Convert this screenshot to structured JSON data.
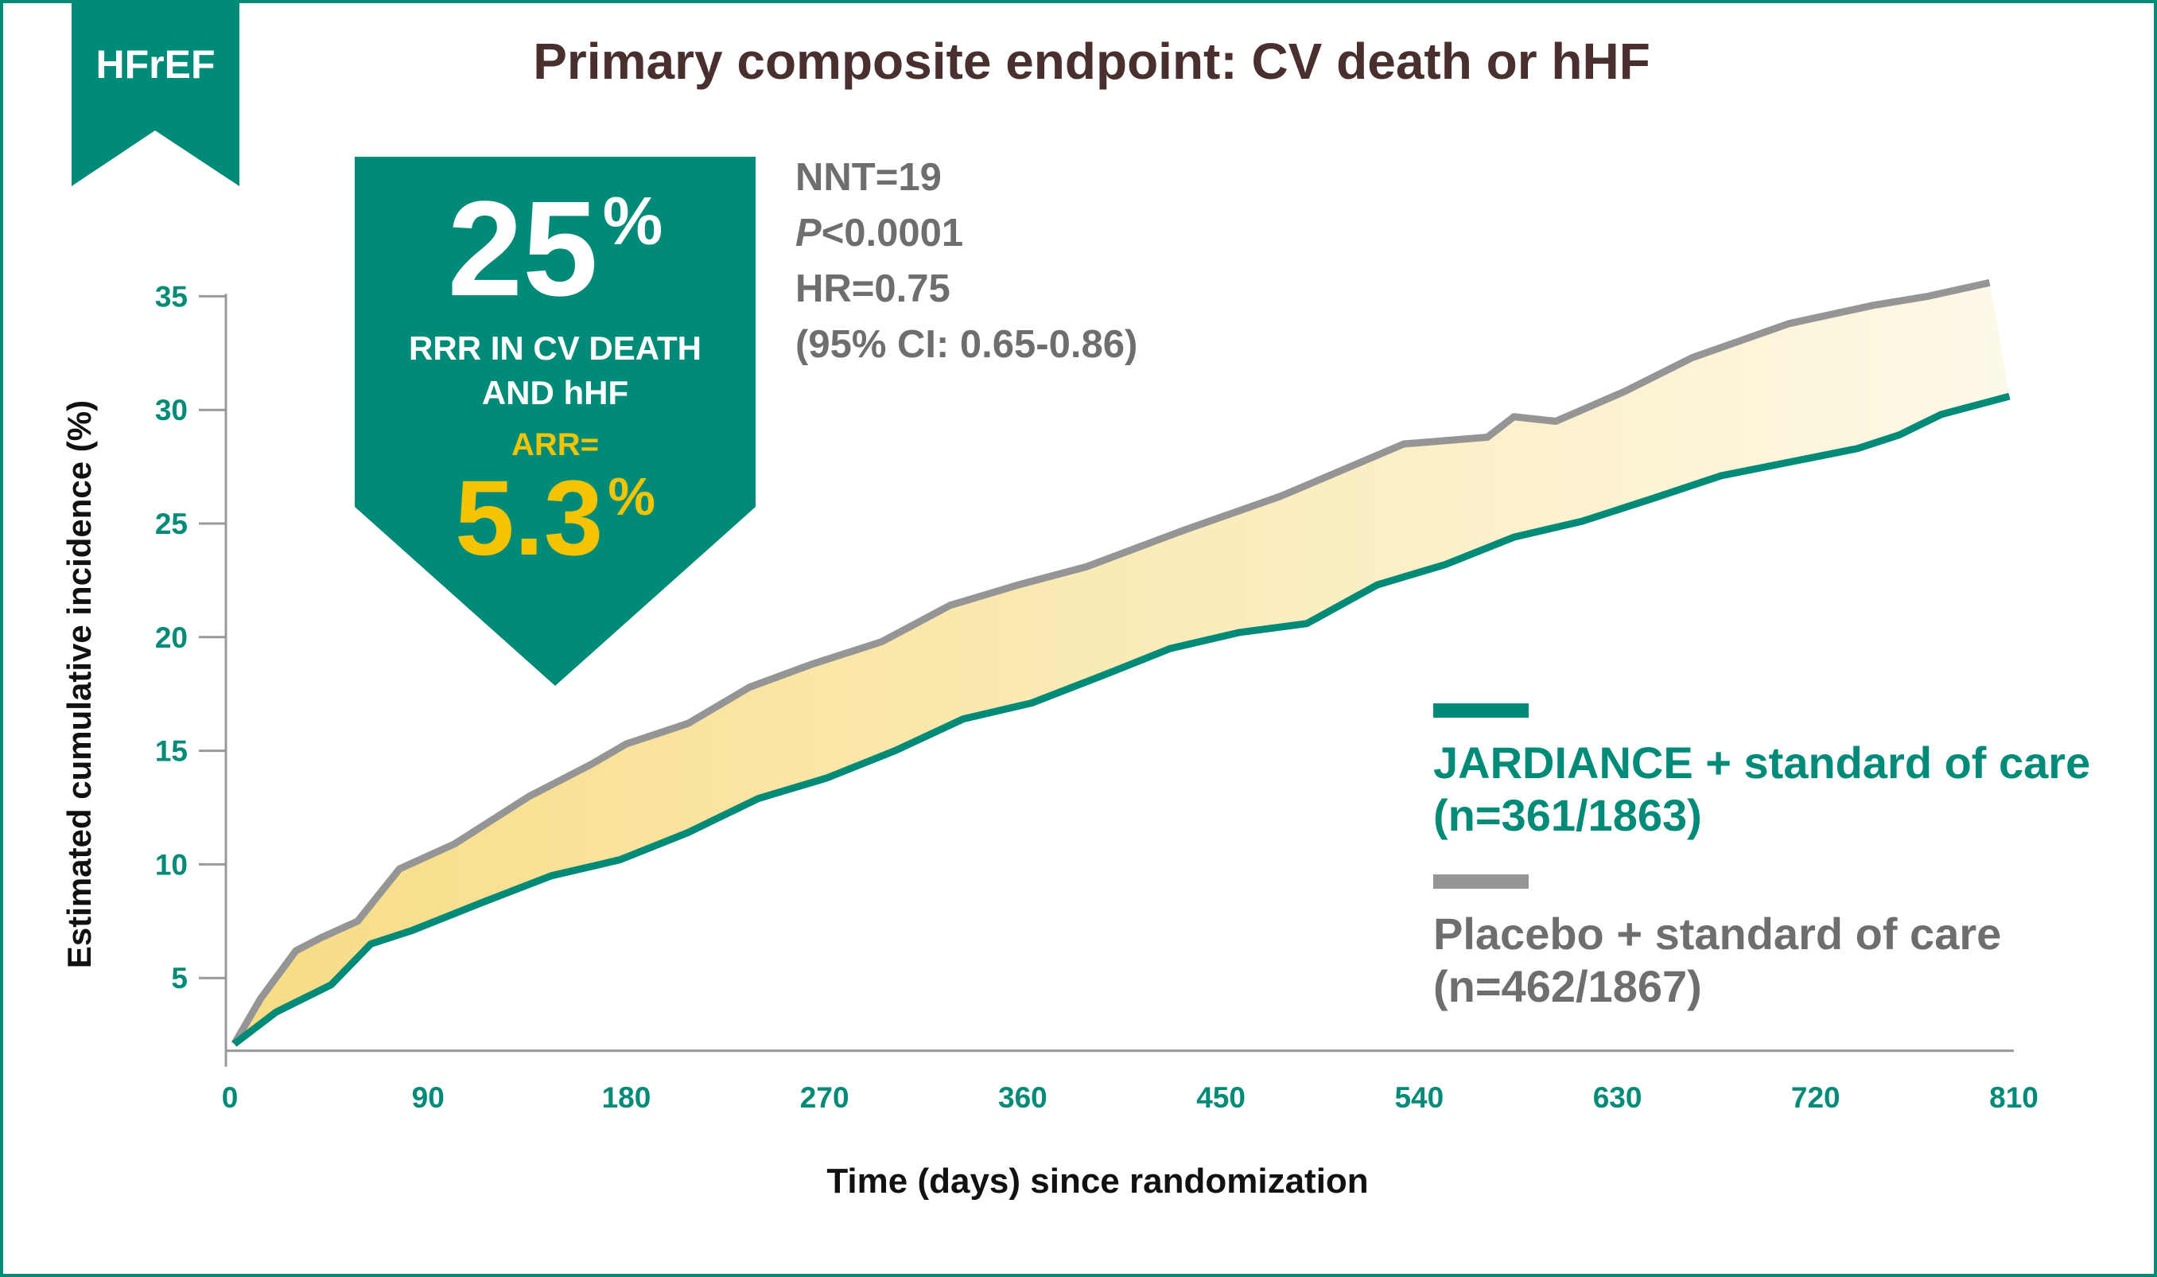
{
  "badge_tag": "HFrEF",
  "title": "Primary composite endpoint: CV death or hHF",
  "callout": {
    "rrr_value": "25",
    "rrr_unit": "%",
    "rrr_line1": "RRR IN CV DEATH",
    "rrr_line2": "AND hHF",
    "arr_label": "ARR=",
    "arr_value": "5.3",
    "arr_unit": "%"
  },
  "stats": {
    "nnt": "NNT=19",
    "p_italic": "P",
    "p_rest": "<0.0001",
    "hr": "HR=0.75",
    "ci": "(95% CI: 0.65-0.86)"
  },
  "colors": {
    "teal": "#008b78",
    "gray": "#959595",
    "yellow": "#f5c400",
    "fill_start": "#f8dc85",
    "fill_end": "#fdf9e8",
    "title": "#4a2f2f"
  },
  "chart_data": {
    "type": "line",
    "xlabel": "Time (days) since randomization",
    "ylabel": "Estimated cumulative incidence (%)",
    "xlim": [
      0,
      810
    ],
    "ylim": [
      1.8,
      35
    ],
    "xticks": [
      "0",
      "90",
      "180",
      "270",
      "360",
      "450",
      "540",
      "630",
      "720",
      "810"
    ],
    "yticks": [
      "5",
      "10",
      "15",
      "20",
      "25",
      "30",
      "35"
    ],
    "grid": false,
    "legend_placement": "right",
    "shaded_between_series": true,
    "series": [
      {
        "name": "JARDIANCE + standard of care",
        "n_label": "(n=361/1863)",
        "color": "#008b78",
        "x": [
          2,
          21,
          46,
          64,
          83,
          114,
          146,
          177,
          208,
          240,
          271,
          302,
          333,
          364,
          396,
          427,
          458,
          489,
          521,
          552,
          583,
          614,
          646,
          677,
          708,
          739,
          758,
          777,
          808
        ],
        "y": [
          2.1,
          3.5,
          4.7,
          6.5,
          7.1,
          8.3,
          9.5,
          10.2,
          11.4,
          12.9,
          13.8,
          15.0,
          16.4,
          17.1,
          18.3,
          19.5,
          20.2,
          20.6,
          22.3,
          23.2,
          24.4,
          25.1,
          26.1,
          27.1,
          27.7,
          28.3,
          28.9,
          29.8,
          30.6
        ]
      },
      {
        "name": "Placebo + standard of care",
        "n_label": "(n=462/1867)",
        "color": "#959595",
        "x": [
          2,
          14,
          30,
          42,
          58,
          77,
          102,
          136,
          164,
          180,
          208,
          236,
          264,
          296,
          327,
          358,
          389,
          433,
          477,
          499,
          533,
          571,
          583,
          602,
          633,
          664,
          708,
          746,
          771,
          799
        ],
        "y": [
          2.1,
          4.1,
          6.2,
          6.8,
          7.5,
          9.8,
          10.9,
          13.0,
          14.4,
          15.3,
          16.2,
          17.8,
          18.8,
          19.8,
          21.4,
          22.3,
          23.1,
          24.7,
          26.2,
          27.1,
          28.5,
          28.8,
          29.7,
          29.5,
          30.8,
          32.3,
          33.8,
          34.6,
          35.0,
          35.6
        ]
      }
    ]
  }
}
